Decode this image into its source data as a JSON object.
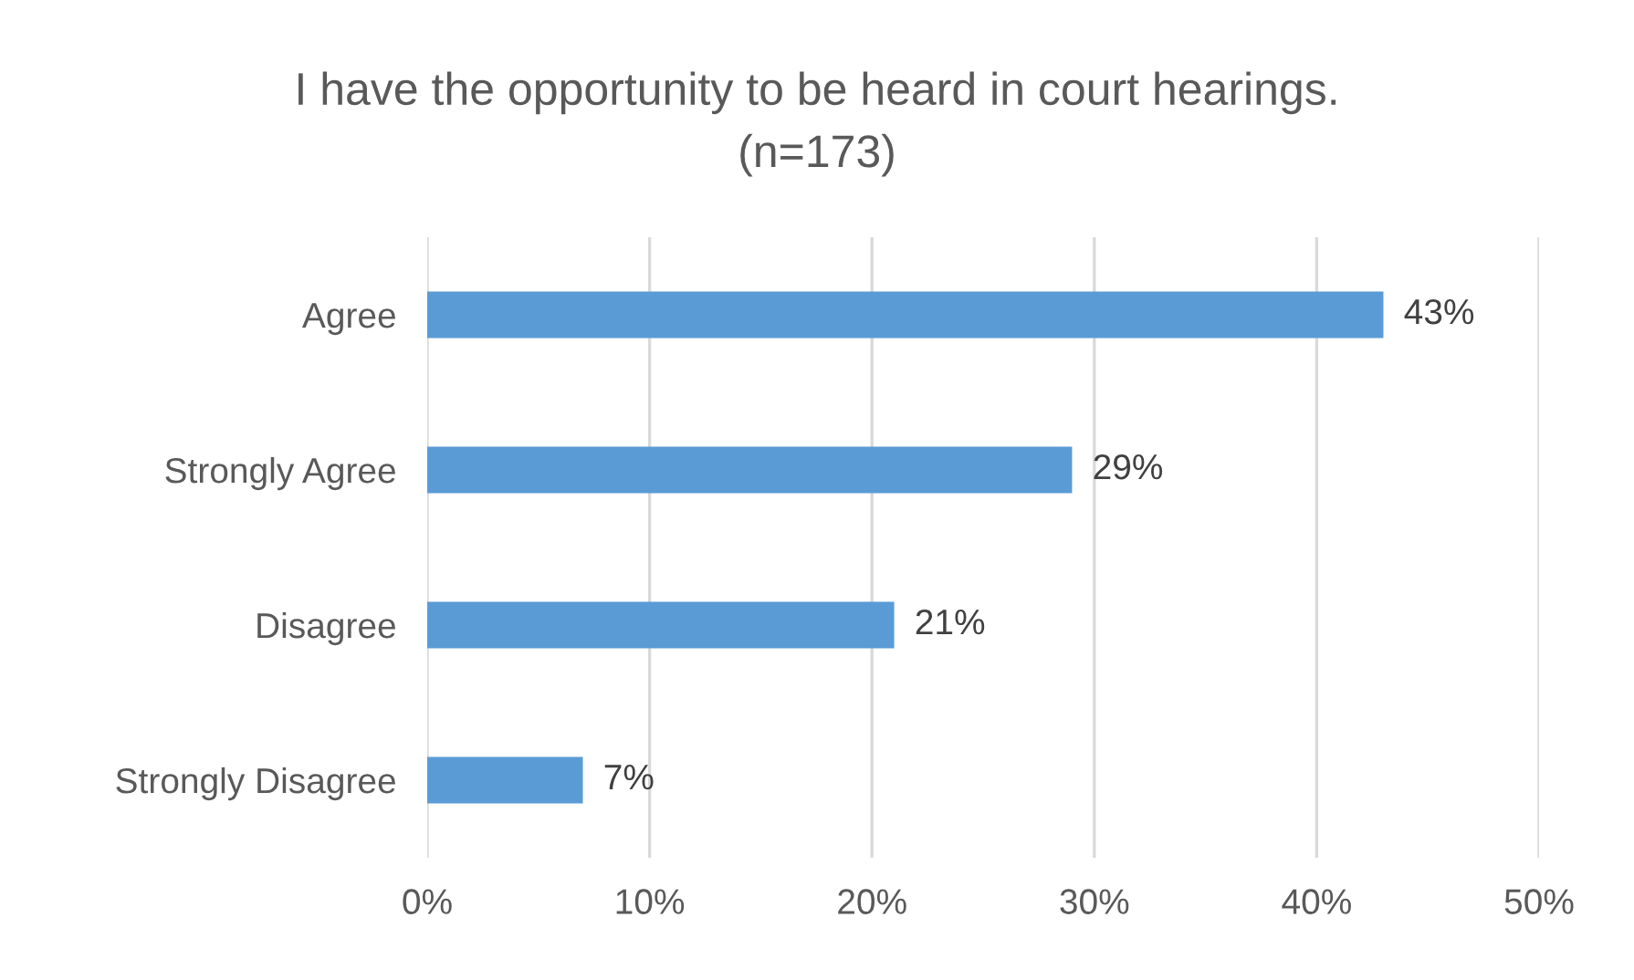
{
  "chart_data": {
    "type": "bar",
    "orientation": "horizontal",
    "title": "I have the opportunity to be heard in court hearings.\n(n=173)",
    "categories": [
      "Agree",
      "Strongly Agree",
      "Disagree",
      "Strongly Disagree"
    ],
    "values": [
      43,
      29,
      21,
      7
    ],
    "value_labels": [
      "43%",
      "29%",
      "21%",
      "7%"
    ],
    "color": "#5b9bd5",
    "xlim": [
      0,
      50
    ],
    "xticks": [
      {
        "value": 0,
        "label": "0%"
      },
      {
        "value": 10,
        "label": "10%"
      },
      {
        "value": 20,
        "label": "20%"
      },
      {
        "value": 30,
        "label": "30%"
      },
      {
        "value": 40,
        "label": "40%"
      },
      {
        "value": 50,
        "label": "50%"
      }
    ],
    "grid": "x"
  }
}
